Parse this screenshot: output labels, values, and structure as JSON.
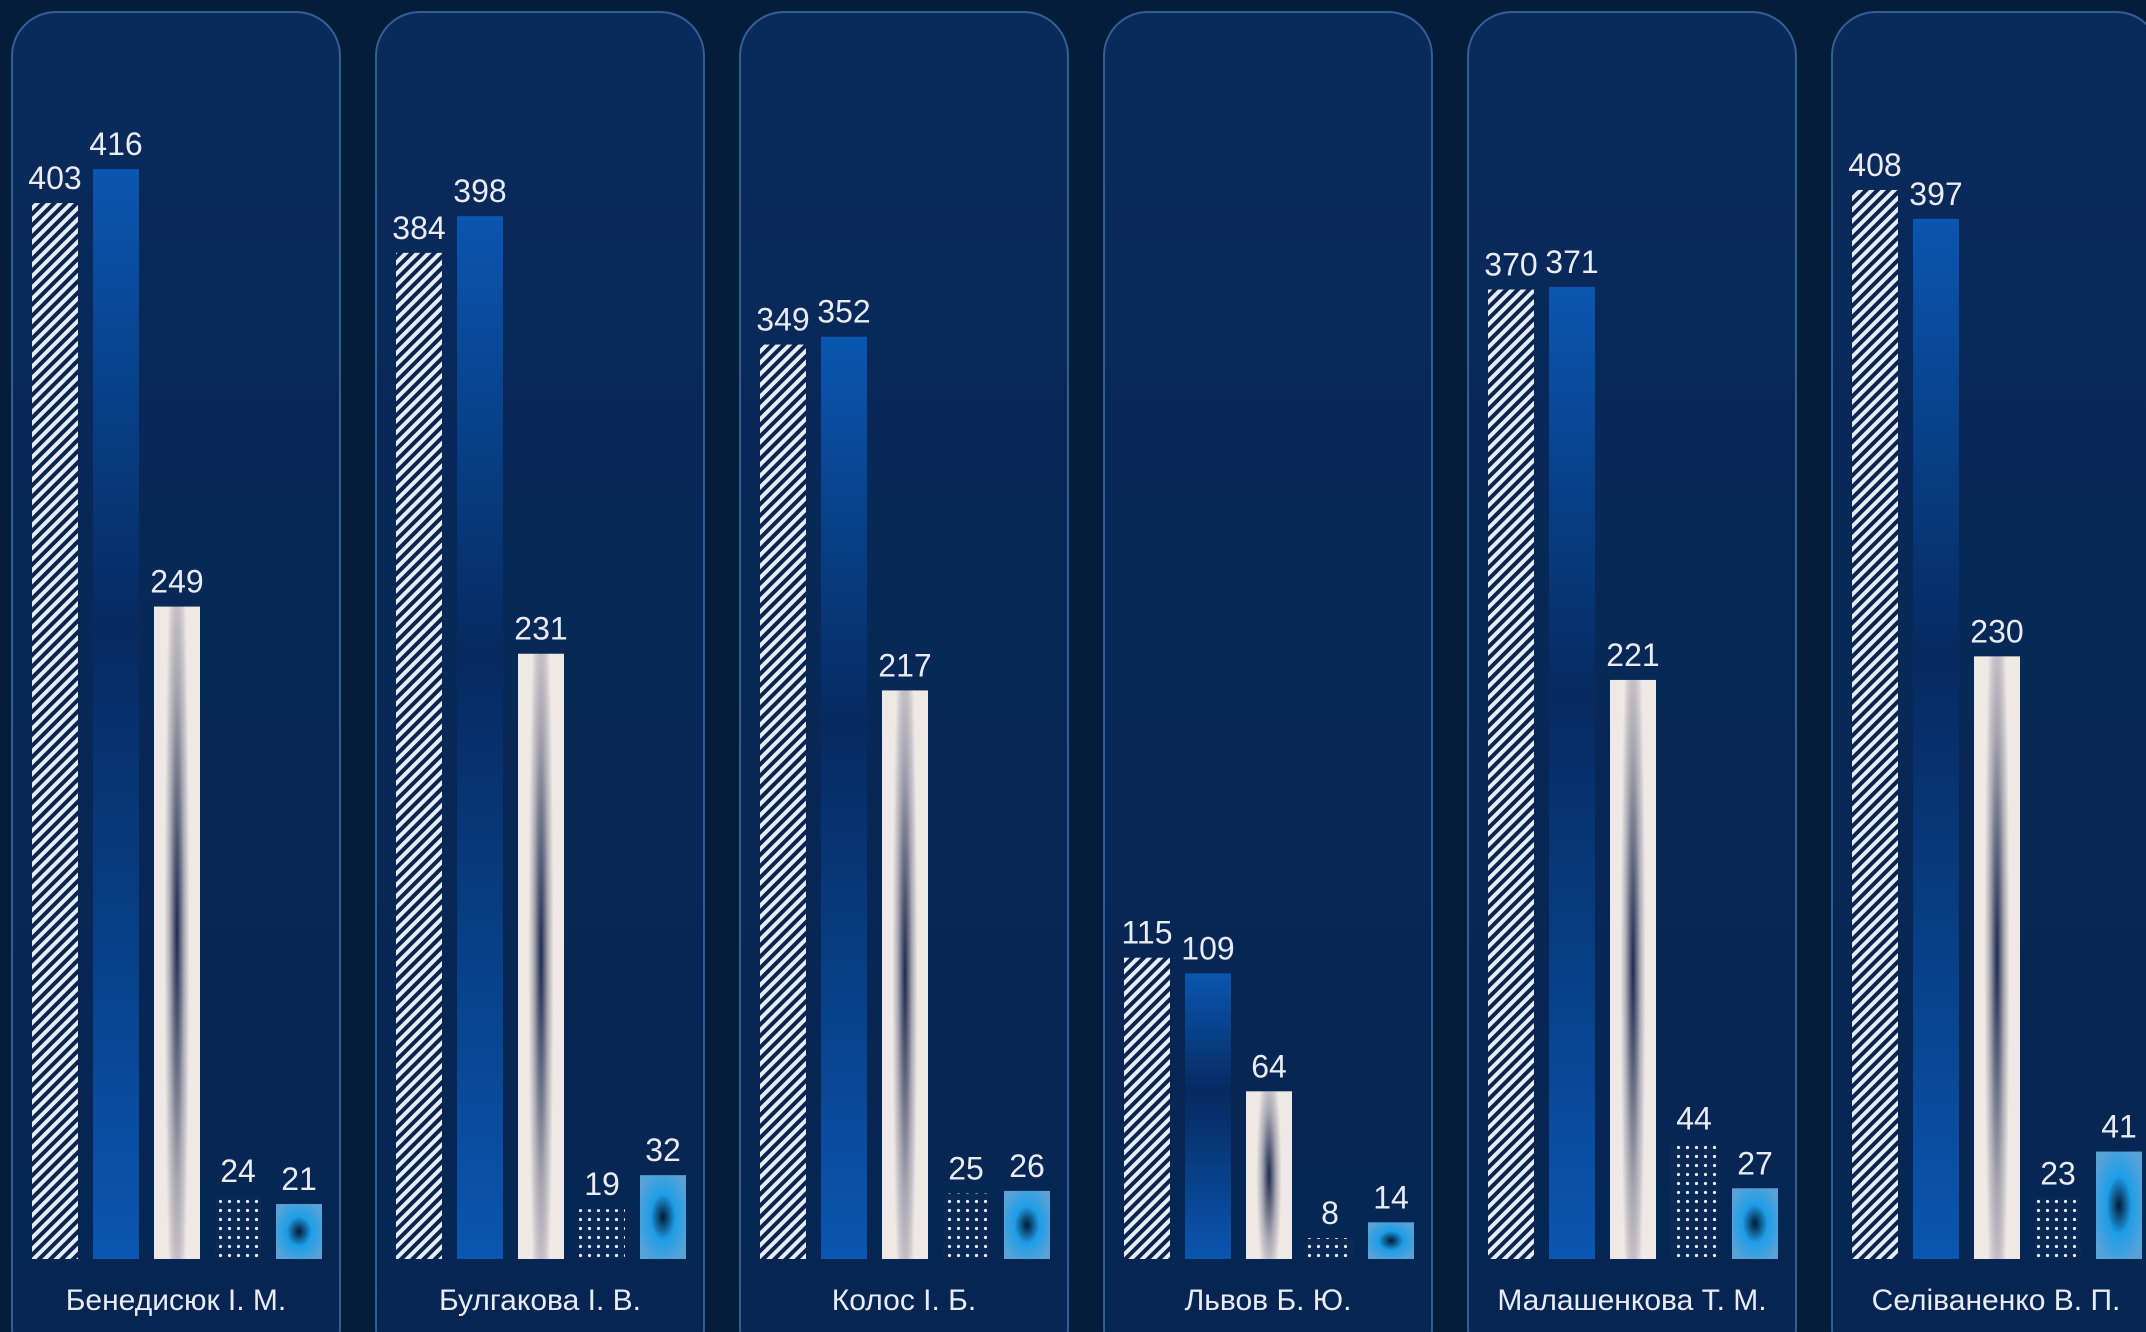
{
  "chart_data": {
    "type": "bar",
    "categories": [
      "Бенедисюк І. М.",
      "Булгакова І. В.",
      "Колос І. Б.",
      "Львов Б. Ю.",
      "Малашенкова Т. М.",
      "Селіваненко В. П."
    ],
    "series": [
      {
        "values": [
          403,
          384,
          349,
          115,
          370,
          408
        ]
      },
      {
        "values": [
          416,
          398,
          352,
          109,
          371,
          397
        ]
      },
      {
        "values": [
          249,
          231,
          217,
          64,
          221,
          230
        ]
      },
      {
        "values": [
          24,
          19,
          25,
          8,
          44,
          23
        ]
      },
      {
        "values": [
          21,
          32,
          26,
          14,
          27,
          41
        ]
      }
    ],
    "ylim": [
      0,
      416
    ],
    "grid": false,
    "legend": "none"
  }
}
